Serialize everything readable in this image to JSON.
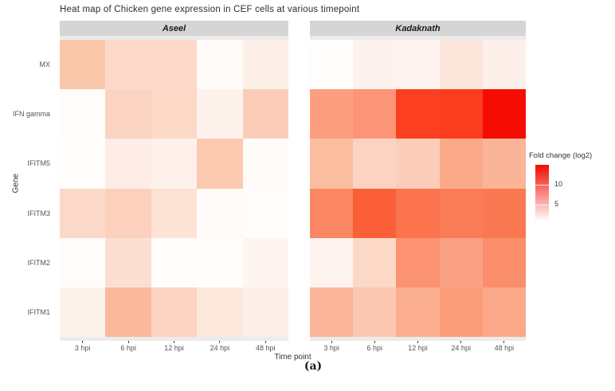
{
  "title": "Heat map of Chicken gene expression in CEF cells at various timepoint",
  "caption": "(a)",
  "axis": {
    "x_title": "Time point",
    "y_title": "Gene"
  },
  "legend": {
    "title": "Fold change (log2)",
    "tick_labels": [
      "10",
      "5"
    ],
    "low_color": "#FFFFFF",
    "high_color": "#F40A00"
  },
  "colors": {
    "strip_background": "#D5D5D5",
    "panel_background": "#EBEBEB",
    "tick_label": "#555555",
    "title_text": "#2E2E2E"
  },
  "chart_data": {
    "type": "heatmap",
    "title": "Heat map of Chicken gene expression in CEF cells at various timepoint",
    "xlabel": "Time point",
    "ylabel": "Gene",
    "facets": [
      "Aseel",
      "Kadaknath"
    ],
    "x_categories": [
      "3 hpi",
      "6 hpi",
      "12 hpi",
      "24 hpi",
      "48 hpi"
    ],
    "y_categories": [
      "MX",
      "IFN gamma",
      "IFITM5",
      "IFITM3",
      "IFITM2",
      "IFITM1"
    ],
    "colorbar": {
      "title": "Fold change (log2)",
      "ticks": [
        10,
        5
      ],
      "range": [
        1,
        15
      ],
      "low_color": "#FFFFFF",
      "high_color": "#F40A00"
    },
    "values": {
      "Aseel": [
        [
          5.0,
          3.5,
          3.5,
          1.0,
          1.5
        ],
        [
          1.0,
          4.0,
          3.5,
          1.5,
          4.5
        ],
        [
          1.0,
          2.0,
          1.5,
          5.0,
          1.0
        ],
        [
          3.5,
          4.0,
          2.5,
          1.0,
          1.0
        ],
        [
          1.0,
          3.0,
          1.0,
          1.0,
          1.5
        ],
        [
          1.5,
          6.0,
          4.0,
          2.5,
          2.0
        ]
      ],
      "Kadaknath": [
        [
          1.0,
          1.5,
          1.5,
          2.5,
          1.5
        ],
        [
          7.0,
          7.5,
          13.0,
          13.0,
          15.0
        ],
        [
          5.5,
          4.0,
          4.5,
          6.5,
          6.0
        ],
        [
          8.5,
          10.0,
          9.0,
          8.5,
          9.0
        ],
        [
          1.5,
          3.5,
          8.0,
          7.0,
          8.0
        ],
        [
          6.0,
          5.0,
          6.5,
          7.5,
          7.0
        ]
      ]
    },
    "cell_colors": {
      "Aseel": [
        [
          "#FBC7AA",
          "#FCD9C9",
          "#FCD9C9",
          "#FFFBF8",
          "#FDF0E9"
        ],
        [
          "#FFFCFA",
          "#FBD3C2",
          "#FCD8C7",
          "#FEF2EC",
          "#FBCDB9"
        ],
        [
          "#FFFEFD",
          "#FDEDE6",
          "#FEF1EB",
          "#FBCAB0",
          "#FFFBF9"
        ],
        [
          "#FCD8C8",
          "#FBD0BD",
          "#FDE2D6",
          "#FFFBF9",
          "#FFFDFC"
        ],
        [
          "#FFFDFC",
          "#FCDFD2",
          "#FFFCFB",
          "#FFFEFD",
          "#FEF5F1"
        ],
        [
          "#FEF2EC",
          "#FBB99C",
          "#FCD3C1",
          "#FDE7DC",
          "#FEEFE8"
        ]
      ],
      "Kadaknath": [
        [
          "#FFFDFB",
          "#FDF2EE",
          "#FEF3EF",
          "#FCE5DB",
          "#FDF0EB"
        ],
        [
          "#FC9F80",
          "#FC9578",
          "#FB3F20",
          "#FB3D1E",
          "#F60C03"
        ],
        [
          "#FBBD9F",
          "#FCD3C2",
          "#FCCDB9",
          "#FBAA89",
          "#FBB497"
        ],
        [
          "#FB8663",
          "#FB5F38",
          "#FB744E",
          "#FB7D58",
          "#FB7952"
        ],
        [
          "#FEF4EF",
          "#FCD8C7",
          "#FB9372",
          "#FBA183",
          "#FB8E6B"
        ],
        [
          "#FBB598",
          "#FCC7B1",
          "#FBAE8F",
          "#FB9C78",
          "#FBA98A"
        ]
      ]
    }
  }
}
